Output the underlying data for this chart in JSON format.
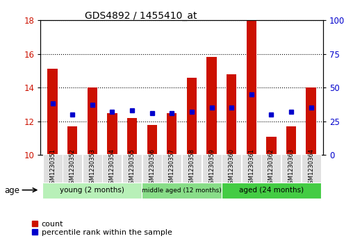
{
  "title": "GDS4892 / 1455410_at",
  "samples": [
    "GSM1230351",
    "GSM1230352",
    "GSM1230353",
    "GSM1230354",
    "GSM1230355",
    "GSM1230356",
    "GSM1230357",
    "GSM1230358",
    "GSM1230359",
    "GSM1230360",
    "GSM1230361",
    "GSM1230362",
    "GSM1230363",
    "GSM1230364"
  ],
  "count_values": [
    15.1,
    11.7,
    14.0,
    12.5,
    12.2,
    11.8,
    12.5,
    14.6,
    15.8,
    14.8,
    18.0,
    11.1,
    11.7,
    14.0
  ],
  "percentile_values": [
    38,
    30,
    37,
    32,
    33,
    31,
    31,
    32,
    35,
    35,
    45,
    30,
    32,
    35
  ],
  "ylim_left": [
    10,
    18
  ],
  "ylim_right": [
    0,
    100
  ],
  "yticks_left": [
    10,
    12,
    14,
    16,
    18
  ],
  "yticks_right": [
    0,
    25,
    50,
    75,
    100
  ],
  "bar_color": "#cc1100",
  "dot_color": "#0000cc",
  "bar_bottom": 10,
  "groups": [
    {
      "label": "young (2 months)",
      "start": 0,
      "end": 5
    },
    {
      "label": "middle aged (12 months)",
      "start": 5,
      "end": 9
    },
    {
      "label": "aged (24 months)",
      "start": 9,
      "end": 14
    }
  ],
  "group_colors": [
    "#b8f0b8",
    "#88dd88",
    "#44cc44"
  ],
  "legend_count_label": "count",
  "legend_percentile_label": "percentile rank within the sample",
  "age_label": "age",
  "bar_width": 0.5
}
